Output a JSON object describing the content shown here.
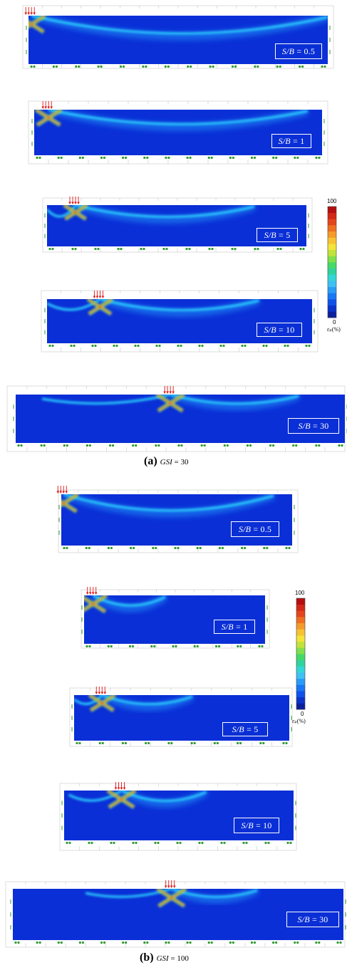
{
  "figure": {
    "group_a": {
      "caption_letter": "(a)",
      "caption_param": "GSI",
      "caption_value": "= 30",
      "panels": [
        {
          "label_var": "S/B",
          "label_value": "= 0.5"
        },
        {
          "label_var": "S/B",
          "label_value": "= 1"
        },
        {
          "label_var": "S/B",
          "label_value": "= 5"
        },
        {
          "label_var": "S/B",
          "label_value": "= 10"
        },
        {
          "label_var": "S/B",
          "label_value": "= 30"
        }
      ],
      "legend": {
        "max": "100",
        "min": "0",
        "unit": "εₚ(%)"
      }
    },
    "group_b": {
      "caption_letter": "(b)",
      "caption_param": "GSI",
      "caption_value": "= 100",
      "panels": [
        {
          "label_var": "S/B",
          "label_value": "= 0.5"
        },
        {
          "label_var": "S/B",
          "label_value": "= 1"
        },
        {
          "label_var": "S/B",
          "label_value": "= 5"
        },
        {
          "label_var": "S/B",
          "label_value": "= 10"
        },
        {
          "label_var": "S/B",
          "label_value": "= 30"
        }
      ],
      "legend": {
        "max": "100",
        "min": "0",
        "unit": "εₚ(%)"
      }
    }
  },
  "colors": {
    "field_blue": "#0a2fd6",
    "band_cyan": "#2ad6ff",
    "band_green": "#8cff6a",
    "peak_red": "#e01818",
    "frame_gray": "#c8c8c8",
    "support_green": "#2f9a2f",
    "legend_scale": [
      "#0b1f9e",
      "#0c33c9",
      "#0f52ea",
      "#1877f5",
      "#2a9cf7",
      "#3fc0f3",
      "#33d6d6",
      "#30d39c",
      "#45d96a",
      "#7fe04a",
      "#bfe33a",
      "#f3e33a",
      "#f7c233",
      "#f59a2b",
      "#ef6f22",
      "#e4461c",
      "#d42716",
      "#b40f10"
    ]
  },
  "icons": [
    "load-arrow-icon",
    "roller-support-icon"
  ]
}
